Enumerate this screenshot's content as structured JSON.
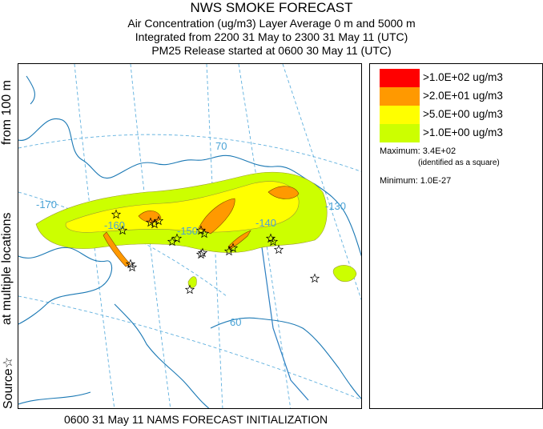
{
  "title": "NWS SMOKE FORECAST",
  "subtitle1": "Air Concentration (ug/m3) Layer Average    0 m and  5000 m",
  "subtitle2": "Integrated from 2200 31 May to 2300 31 May 11 (UTC)",
  "subtitle3": "PM25 Release started at 0600 30 May 11 (UTC)",
  "footer": "0600 31 May 11 NAMS FORECAST INITIALIZATION",
  "side_label": {
    "source": "Source☆",
    "locations": "at multiple locations",
    "from": "from   100 m"
  },
  "legend": {
    "items": [
      {
        "label": ">1.0E+02 ug/m3",
        "color": "#ff0000"
      },
      {
        "label": ">2.0E+01 ug/m3",
        "color": "#ff9900"
      },
      {
        "label": ">5.0E+00 ug/m3",
        "color": "#ffff00"
      },
      {
        "label": ">1.0E+00 ug/m3",
        "color": "#ccff00"
      }
    ],
    "maximum": "Maximum: 3.4E+02",
    "maximum_note": "(identified as a square)",
    "minimum": "Minimum: 1.0E-27"
  },
  "map": {
    "grid_labels": [
      "70",
      "-170",
      "-160",
      "-150",
      "-140",
      "-130",
      "60"
    ],
    "colors": {
      "coast": "#1a78b4",
      "grid": "#5fb0de"
    }
  }
}
